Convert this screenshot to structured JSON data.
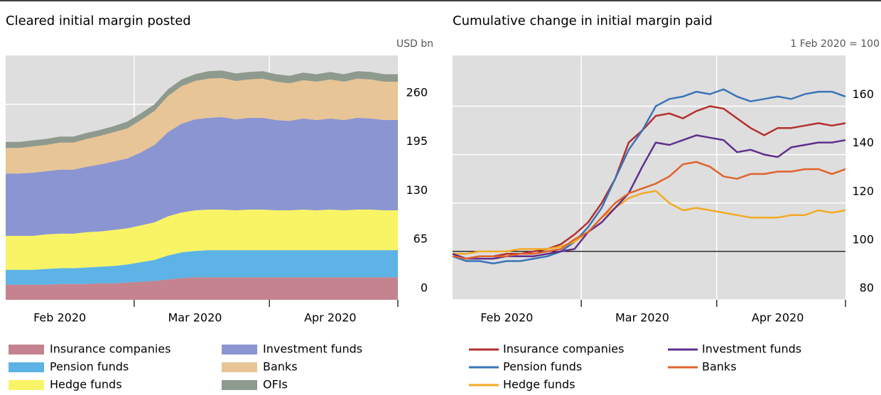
{
  "chart_data": [
    {
      "type": "stacked-area",
      "title": "Cleared initial margin posted",
      "ylabel": "USD bn",
      "categories": [
        null,
        null,
        null,
        null,
        "Feb 2020",
        null,
        null,
        null,
        null,
        null,
        null,
        null,
        null,
        null,
        "Mar 2020",
        null,
        null,
        null,
        null,
        null,
        null,
        null,
        null,
        null,
        "Apr 2020",
        null,
        null,
        null,
        null,
        null
      ],
      "ylim": [
        0,
        325
      ],
      "yticks": [
        0,
        65,
        130,
        195,
        260
      ],
      "grid": true,
      "series": [
        {
          "name": "Insurance companies",
          "color": "#c4838f",
          "values": [
            20,
            20,
            20,
            20,
            21,
            21,
            21,
            22,
            22,
            23,
            24,
            25,
            27,
            29,
            30,
            30,
            30,
            30,
            30,
            30,
            30,
            30,
            30,
            30,
            30,
            30,
            30,
            30,
            30,
            30
          ]
        },
        {
          "name": "Pension funds",
          "color": "#5db3e6",
          "values": [
            20,
            20,
            20,
            21,
            21,
            21,
            22,
            22,
            23,
            24,
            26,
            28,
            32,
            34,
            35,
            36,
            36,
            36,
            36,
            36,
            36,
            36,
            36,
            36,
            36,
            36,
            36,
            36,
            36,
            36
          ]
        },
        {
          "name": "Hedge funds",
          "color": "#f8f466",
          "values": [
            45,
            45,
            45,
            46,
            46,
            46,
            47,
            47,
            48,
            48,
            49,
            50,
            52,
            53,
            54,
            54,
            54,
            53,
            54,
            54,
            53,
            53,
            54,
            53,
            54,
            53,
            54,
            54,
            53,
            53
          ]
        },
        {
          "name": "Investment funds",
          "color": "#8a95d1",
          "values": [
            83,
            83,
            84,
            84,
            85,
            85,
            87,
            89,
            91,
            93,
            97,
            103,
            112,
            118,
            121,
            122,
            123,
            121,
            122,
            122,
            120,
            119,
            121,
            120,
            121,
            120,
            122,
            121,
            120,
            120
          ]
        },
        {
          "name": "Banks",
          "color": "#e8c596",
          "values": [
            34,
            34,
            35,
            35,
            36,
            36,
            37,
            38,
            39,
            40,
            43,
            45,
            48,
            50,
            51,
            52,
            52,
            51,
            51,
            52,
            51,
            50,
            51,
            51,
            52,
            51,
            52,
            52,
            51,
            51
          ]
        },
        {
          "name": "OFIs",
          "color": "#8f9a8e",
          "values": [
            8,
            8,
            8,
            8,
            8,
            8,
            8,
            8,
            8,
            9,
            9,
            9,
            9,
            9,
            9,
            10,
            10,
            10,
            10,
            10,
            10,
            10,
            10,
            10,
            10,
            10,
            10,
            10,
            10,
            10
          ]
        }
      ]
    },
    {
      "type": "line",
      "title": "Cumulative change in initial margin paid",
      "ylabel": "1 Feb 2020 = 100",
      "categories": [
        null,
        null,
        null,
        null,
        "Feb 2020",
        null,
        null,
        null,
        null,
        null,
        null,
        null,
        null,
        null,
        "Mar 2020",
        null,
        null,
        null,
        null,
        null,
        null,
        null,
        null,
        null,
        "Apr 2020",
        null,
        null,
        null,
        null,
        null
      ],
      "ylim": [
        80,
        181
      ],
      "yticks": [
        80,
        100,
        120,
        140,
        160
      ],
      "grid": true,
      "reference_line": 100,
      "series": [
        {
          "name": "Insurance companies",
          "color": "#b3302e",
          "values": [
            98,
            97,
            98,
            98,
            99,
            99,
            100,
            101,
            103,
            107,
            112,
            120,
            130,
            145,
            150,
            156,
            157,
            155,
            158,
            160,
            159,
            155,
            151,
            148,
            151,
            151,
            152,
            153,
            152,
            153
          ]
        },
        {
          "name": "Pension funds",
          "color": "#3a74b9",
          "values": [
            98,
            96,
            96,
            95,
            96,
            96,
            97,
            98,
            100,
            104,
            110,
            118,
            130,
            142,
            150,
            160,
            163,
            164,
            166,
            165,
            167,
            164,
            162,
            163,
            164,
            163,
            165,
            166,
            166,
            164
          ]
        },
        {
          "name": "Hedge funds",
          "color": "#f3aa22",
          "values": [
            99,
            99,
            100,
            100,
            100,
            101,
            101,
            101,
            102,
            104,
            108,
            114,
            118,
            122,
            124,
            125,
            120,
            117,
            118,
            117,
            116,
            115,
            114,
            114,
            114,
            115,
            115,
            117,
            116,
            117
          ]
        },
        {
          "name": "Investment funds",
          "color": "#5f2f8e",
          "values": [
            99,
            97,
            97,
            97,
            98,
            98,
            98,
            99,
            100,
            101,
            108,
            112,
            118,
            124,
            135,
            145,
            144,
            146,
            148,
            147,
            146,
            141,
            142,
            140,
            139,
            143,
            144,
            145,
            145,
            146
          ]
        },
        {
          "name": "Banks",
          "color": "#e0632b",
          "values": [
            98,
            97,
            98,
            98,
            98,
            99,
            99,
            100,
            101,
            105,
            108,
            114,
            120,
            124,
            126,
            128,
            131,
            136,
            137,
            135,
            131,
            130,
            132,
            132,
            133,
            133,
            134,
            134,
            132,
            134
          ]
        }
      ]
    }
  ]
}
